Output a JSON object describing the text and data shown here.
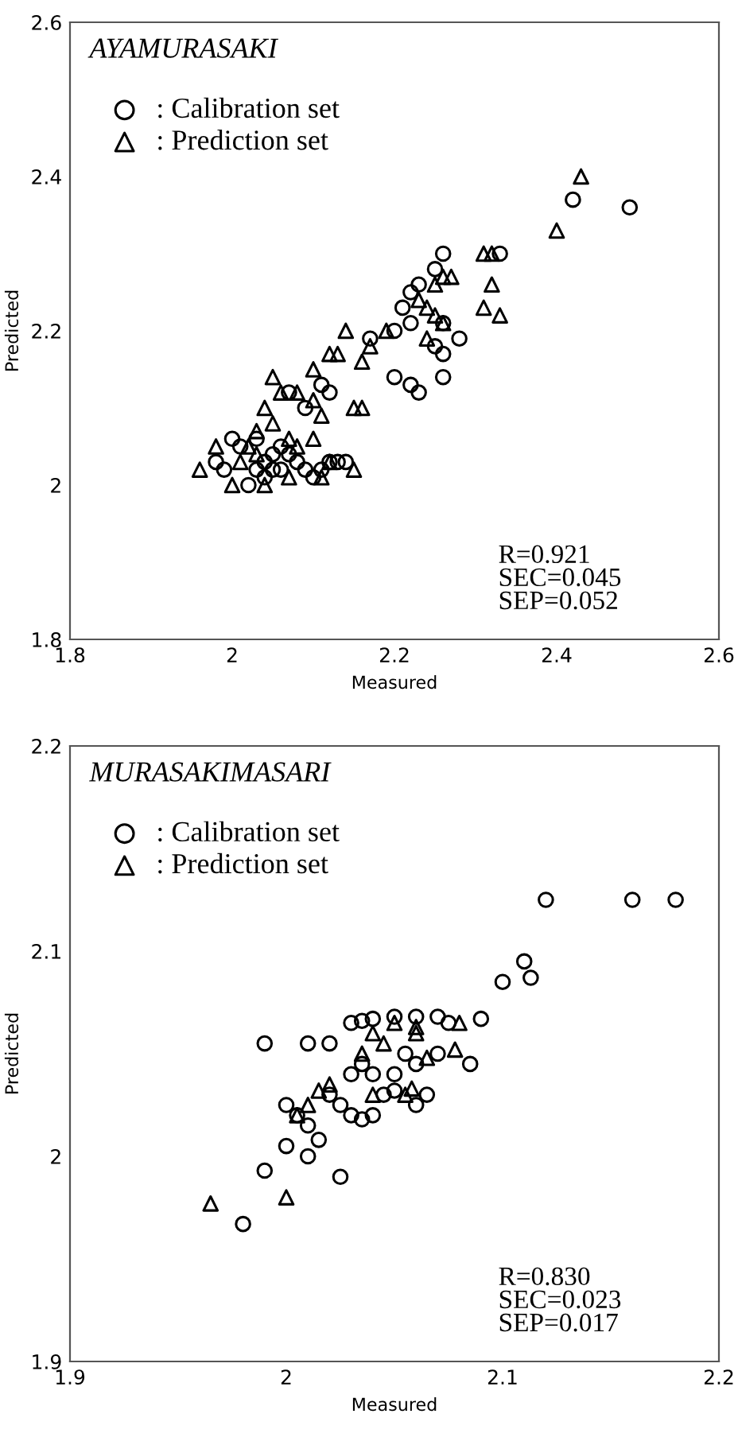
{
  "chart_data": [
    {
      "type": "scatter",
      "title": "AYAMURASAKI",
      "xlabel": "Measured",
      "ylabel": "Predicted",
      "xlim": [
        1.8,
        2.6
      ],
      "ylim": [
        1.8,
        2.6
      ],
      "xticks": [
        1.8,
        2,
        2.2,
        2.4,
        2.6
      ],
      "yticks": [
        1.8,
        2,
        2.2,
        2.4,
        2.6
      ],
      "grid": false,
      "legend": "top left",
      "annotations": [
        "R=0.921\nSEC=0.045\nSEP=0.052"
      ],
      "series": [
        {
          "name": ": Calibration set",
          "color": "#000000",
          "marker": "circle",
          "x": [
            2.49,
            2.42,
            2.33,
            2.26,
            2.25,
            2.23,
            2.22,
            2.21,
            2.2,
            2.22,
            2.26,
            2.28,
            2.25,
            2.26,
            2.2,
            2.22,
            2.23,
            2.26,
            2.17,
            2.07,
            2.11,
            2.12,
            2.09,
            1.99,
            2.0,
            2.01,
            2.03,
            2.04,
            2.05,
            2.06,
            2.07,
            2.08,
            2.09,
            2.1,
            2.12,
            2.13,
            2.04,
            2.02,
            1.98,
            2.03,
            2.05,
            2.06,
            2.11,
            2.14
          ],
          "values": [
            2.36,
            2.37,
            2.3,
            2.3,
            2.28,
            2.26,
            2.25,
            2.23,
            2.2,
            2.21,
            2.21,
            2.19,
            2.18,
            2.17,
            2.14,
            2.13,
            2.12,
            2.14,
            2.19,
            2.12,
            2.13,
            2.12,
            2.1,
            2.02,
            2.06,
            2.05,
            2.06,
            2.03,
            2.02,
            2.05,
            2.04,
            2.03,
            2.02,
            2.01,
            2.03,
            2.03,
            2.01,
            2.0,
            2.03,
            2.02,
            2.04,
            2.02,
            2.02,
            2.03
          ]
        },
        {
          "name": ": Prediction set",
          "color": "#000000",
          "marker": "triangle",
          "x": [
            2.43,
            2.4,
            2.31,
            2.32,
            2.26,
            2.25,
            2.27,
            2.23,
            2.32,
            2.24,
            2.25,
            2.26,
            2.31,
            2.33,
            2.24,
            2.19,
            2.17,
            2.16,
            2.13,
            2.14,
            2.12,
            2.1,
            2.08,
            2.1,
            2.06,
            2.05,
            2.04,
            2.11,
            2.15,
            2.16,
            2.15,
            1.96,
            1.98,
            2.0,
            2.02,
            2.03,
            2.05,
            2.07,
            2.08,
            2.1,
            2.11,
            2.07,
            2.04,
            2.01,
            2.12,
            2.03
          ],
          "values": [
            2.4,
            2.33,
            2.3,
            2.3,
            2.27,
            2.26,
            2.27,
            2.24,
            2.26,
            2.23,
            2.22,
            2.21,
            2.23,
            2.22,
            2.19,
            2.2,
            2.18,
            2.16,
            2.17,
            2.2,
            2.17,
            2.15,
            2.12,
            2.11,
            2.12,
            2.14,
            2.1,
            2.09,
            2.1,
            2.1,
            2.02,
            2.02,
            2.05,
            2.0,
            2.05,
            2.07,
            2.08,
            2.06,
            2.05,
            2.06,
            2.01,
            2.01,
            2.0,
            2.03,
            2.03,
            2.04
          ]
        }
      ]
    },
    {
      "type": "scatter",
      "title": "MURASAKIMASARI",
      "xlabel": "Measured",
      "ylabel": "Predicted",
      "xlim": [
        1.9,
        2.2
      ],
      "ylim": [
        1.9,
        2.2
      ],
      "xticks": [
        1.9,
        2,
        2.1,
        2.2
      ],
      "yticks": [
        1.9,
        2,
        2.1,
        2.2
      ],
      "grid": false,
      "legend": "top left",
      "annotations": [
        "R=0.830\nSEC=0.023\nSEP=0.017"
      ],
      "series": [
        {
          "name": ": Calibration set",
          "color": "#000000",
          "marker": "circle",
          "x": [
            2.12,
            2.16,
            2.18,
            2.11,
            2.1,
            2.113,
            2.09,
            2.085,
            1.99,
            2.01,
            2.02,
            2.03,
            2.035,
            2.04,
            2.05,
            2.06,
            2.07,
            2.075,
            2.03,
            2.035,
            2.04,
            2.05,
            2.06,
            2.07,
            2.065,
            2.02,
            2.025,
            2.03,
            2.035,
            2.04,
            2.045,
            2.05,
            2.0,
            2.005,
            2.01,
            2.015,
            2.01,
            2.025,
            2.0,
            1.99,
            1.98,
            2.055,
            2.06
          ],
          "values": [
            2.125,
            2.125,
            2.125,
            2.095,
            2.085,
            2.087,
            2.067,
            2.045,
            2.055,
            2.055,
            2.055,
            2.065,
            2.066,
            2.067,
            2.068,
            2.068,
            2.068,
            2.065,
            2.04,
            2.045,
            2.04,
            2.04,
            2.045,
            2.05,
            2.03,
            2.03,
            2.025,
            2.02,
            2.018,
            2.02,
            2.03,
            2.032,
            2.025,
            2.02,
            2.015,
            2.008,
            2.0,
            1.99,
            2.005,
            1.993,
            1.967,
            2.05,
            2.025
          ]
        },
        {
          "name": ": Prediction set",
          "color": "#000000",
          "marker": "triangle",
          "x": [
            1.965,
            2.0,
            2.005,
            2.015,
            2.02,
            2.04,
            2.055,
            2.058,
            2.065,
            2.078,
            2.08,
            2.05,
            2.06,
            2.045,
            2.04,
            2.035,
            2.06,
            2.01
          ],
          "values": [
            1.977,
            1.98,
            2.02,
            2.032,
            2.035,
            2.03,
            2.03,
            2.033,
            2.048,
            2.052,
            2.065,
            2.065,
            2.063,
            2.055,
            2.06,
            2.05,
            2.06,
            2.025
          ]
        }
      ]
    }
  ]
}
